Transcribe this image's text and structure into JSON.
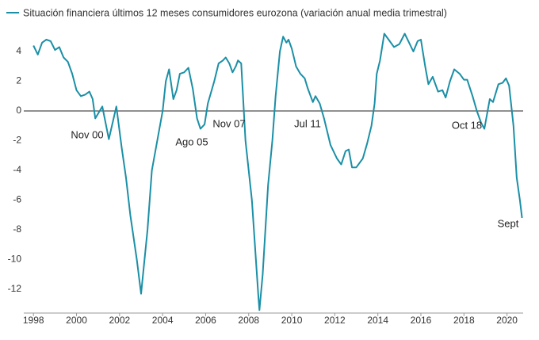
{
  "chart_data": {
    "type": "line",
    "title": "Situación financiera últimos 12 meses consumidores eurozona (variación anual media trimestral)",
    "annotations": [
      "Nov 00",
      "Ago 05",
      "Nov 07",
      "Jul 11",
      "Oct 18",
      "Sept"
    ],
    "x": [
      1998.0,
      1998.2,
      1998.4,
      1998.6,
      1998.8,
      1999.0,
      1999.2,
      1999.4,
      1999.6,
      1999.8,
      2000.0,
      2000.2,
      2000.4,
      2000.6,
      2000.75,
      2000.87,
      2001.2,
      2001.5,
      2001.85,
      2002.1,
      2002.3,
      2002.5,
      2002.8,
      2003.0,
      2003.3,
      2003.5,
      2003.75,
      2004.0,
      2004.15,
      2004.3,
      2004.5,
      2004.65,
      2004.8,
      2005.0,
      2005.2,
      2005.4,
      2005.6,
      2005.76,
      2005.95,
      2006.1,
      2006.4,
      2006.6,
      2006.8,
      2006.93,
      2007.1,
      2007.25,
      2007.4,
      2007.5,
      2007.65,
      2007.85,
      2008.15,
      2008.45,
      2008.5,
      2008.65,
      2008.9,
      2009.1,
      2009.25,
      2009.45,
      2009.6,
      2009.75,
      2009.85,
      2010.0,
      2010.2,
      2010.4,
      2010.6,
      2010.75,
      2010.98,
      2011.1,
      2011.3,
      2011.5,
      2011.8,
      2012.1,
      2012.3,
      2012.5,
      2012.65,
      2012.8,
      2013.0,
      2013.3,
      2013.5,
      2013.7,
      2013.85,
      2013.95,
      2014.1,
      2014.3,
      2014.5,
      2014.75,
      2015.0,
      2015.25,
      2015.45,
      2015.65,
      2015.85,
      2016.0,
      2016.2,
      2016.35,
      2016.55,
      2016.8,
      2017.0,
      2017.15,
      2017.35,
      2017.55,
      2017.8,
      2018.0,
      2018.15,
      2018.4,
      2018.6,
      2018.8,
      2018.95,
      2019.2,
      2019.35,
      2019.6,
      2019.8,
      2019.95,
      2020.1,
      2020.3,
      2020.45,
      2020.6,
      2020.7
    ],
    "series": [
      {
        "name": "Situación financiera últimos 12 meses consumidores eurozona (variación anual media trimestral)",
        "color": "#1b8fa6",
        "values": [
          4.4,
          3.8,
          4.6,
          4.8,
          4.7,
          4.1,
          4.3,
          3.6,
          3.3,
          2.5,
          1.4,
          1.0,
          1.1,
          1.3,
          0.8,
          -0.5,
          0.3,
          -1.9,
          0.3,
          -2.5,
          -4.5,
          -7.0,
          -10.0,
          -12.3,
          -8.0,
          -4.0,
          -2.0,
          0.0,
          2.0,
          2.8,
          0.8,
          1.4,
          2.5,
          2.6,
          2.9,
          1.5,
          -0.5,
          -1.2,
          -0.9,
          0.5,
          2.0,
          3.2,
          3.4,
          3.6,
          3.2,
          2.6,
          3.0,
          3.4,
          3.2,
          -2.0,
          -6.0,
          -12.5,
          -13.4,
          -11.0,
          -5.0,
          -2.0,
          1.0,
          4.0,
          5.0,
          4.6,
          4.8,
          4.2,
          3.0,
          2.5,
          2.2,
          1.5,
          0.6,
          1.0,
          0.5,
          -0.5,
          -2.3,
          -3.2,
          -3.6,
          -2.7,
          -2.6,
          -3.8,
          -3.8,
          -3.2,
          -2.2,
          -1.0,
          0.5,
          2.5,
          3.4,
          5.2,
          4.8,
          4.3,
          4.5,
          5.2,
          4.6,
          4.0,
          4.7,
          4.8,
          3.0,
          1.8,
          2.3,
          1.3,
          1.4,
          0.9,
          2.0,
          2.8,
          2.5,
          2.1,
          2.1,
          1.0,
          0.0,
          -0.8,
          -1.2,
          0.8,
          0.6,
          1.8,
          1.9,
          2.2,
          1.7,
          -1.0,
          -4.5,
          -6.0,
          -7.2
        ]
      }
    ],
    "xlim": [
      1997.55,
      2020.75
    ],
    "xticks": [
      1998,
      2000,
      2002,
      2004,
      2006,
      2008,
      2010,
      2012,
      2014,
      2016,
      2018,
      2020
    ],
    "ylim": [
      -13.6,
      5.6
    ],
    "yticks": [
      -12,
      -10,
      -8,
      -6,
      -4,
      -2,
      0,
      2,
      4
    ],
    "grid": false
  }
}
